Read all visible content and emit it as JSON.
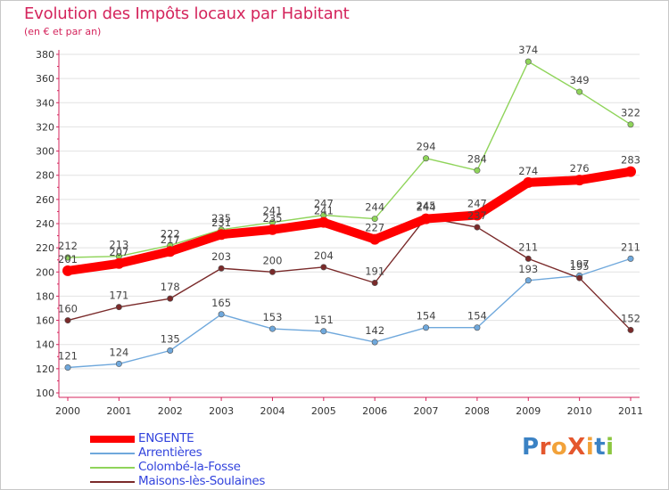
{
  "title": "Evolution des Impôts locaux par Habitant",
  "subtitle": "(en € et par an)",
  "brand": {
    "text": "ProXiti",
    "letters": [
      "P",
      "r",
      "o",
      "X",
      "i",
      "t",
      "i"
    ],
    "colors": [
      "#3b82c4",
      "#e4572e",
      "#f2a23a",
      "#e4572e",
      "#f2a23a",
      "#3b82c4",
      "#8cc63f"
    ]
  },
  "chart_data": {
    "type": "line",
    "title": "Evolution des Impôts locaux par Habitant",
    "subtitle": "(en € et par an)",
    "x": [
      "2000",
      "2001",
      "2002",
      "2003",
      "2004",
      "2005",
      "2006",
      "2007",
      "2008",
      "2009",
      "2010",
      "2011"
    ],
    "ylim": [
      100,
      380
    ],
    "yticks": [
      100,
      120,
      140,
      160,
      180,
      200,
      220,
      240,
      260,
      280,
      300,
      320,
      340,
      360,
      380
    ],
    "grid": "horizontal",
    "legend_position": "bottom-left",
    "series": [
      {
        "name": "ENGENTE",
        "color": "#ff0000",
        "bold": true,
        "values": [
          201,
          207,
          217,
          231,
          235,
          241,
          227,
          244,
          247,
          274,
          276,
          283
        ]
      },
      {
        "name": "Arrentières",
        "color": "#6fa8dc",
        "values": [
          121,
          124,
          135,
          165,
          153,
          151,
          142,
          154,
          154,
          193,
          197,
          211
        ]
      },
      {
        "name": "Colombé-la-Fosse",
        "color": "#8fd45a",
        "values": [
          212,
          213,
          222,
          235,
          241,
          247,
          244,
          294,
          284,
          374,
          349,
          322
        ]
      },
      {
        "name": "Maisons-lès-Soulaines",
        "color": "#7a2a2a",
        "values": [
          160,
          171,
          178,
          203,
          200,
          204,
          191,
          245,
          237,
          211,
          195,
          152
        ]
      }
    ],
    "labels": [
      {
        "series": 0,
        "text": [
          "201",
          "207",
          "217",
          "231",
          "235",
          "241",
          "227",
          "244",
          "247",
          "274",
          "276",
          "283"
        ]
      },
      {
        "series": 1,
        "text": [
          "121",
          "124",
          "135",
          "165",
          "153",
          "151",
          "142",
          "154",
          "154",
          "193",
          "197",
          "211"
        ]
      },
      {
        "series": 2,
        "text": [
          "212",
          "213",
          "222",
          "235",
          "241",
          "247",
          "244",
          "294",
          "284",
          "374",
          "349",
          "322"
        ]
      },
      {
        "series": 3,
        "text": [
          "160",
          "171",
          "178",
          "203",
          "200",
          "204",
          "191",
          "245",
          "237",
          "211",
          "195",
          "152"
        ]
      }
    ]
  }
}
